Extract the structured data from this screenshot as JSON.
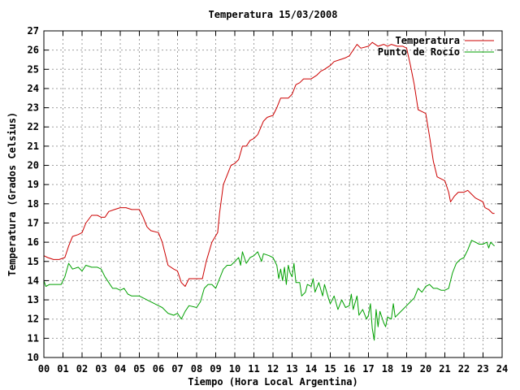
{
  "chart_data": {
    "type": "line",
    "title": "Temperatura 15/03/2008",
    "xlabel": "Tiempo (Hora Local Argentina)",
    "ylabel": "Temperatura (Grados Celsius)",
    "xlim": [
      0,
      24
    ],
    "ylim": [
      10,
      27
    ],
    "x_ticks": [
      "00",
      "01",
      "02",
      "03",
      "04",
      "05",
      "06",
      "07",
      "08",
      "09",
      "10",
      "11",
      "12",
      "13",
      "14",
      "15",
      "16",
      "17",
      "18",
      "19",
      "20",
      "21",
      "22",
      "23",
      "24"
    ],
    "y_ticks": [
      10,
      11,
      12,
      13,
      14,
      15,
      16,
      17,
      18,
      19,
      20,
      21,
      22,
      23,
      24,
      25,
      26,
      27
    ],
    "grid": true,
    "legend_position": "top-right",
    "series": [
      {
        "name": "Temperatura",
        "color": "#cc0000",
        "points": [
          [
            0.0,
            15.3
          ],
          [
            0.2,
            15.2
          ],
          [
            0.5,
            15.1
          ],
          [
            0.8,
            15.1
          ],
          [
            1.1,
            15.2
          ],
          [
            1.3,
            15.8
          ],
          [
            1.5,
            16.3
          ],
          [
            1.8,
            16.4
          ],
          [
            2.0,
            16.5
          ],
          [
            2.2,
            17.0
          ],
          [
            2.5,
            17.4
          ],
          [
            2.8,
            17.4
          ],
          [
            3.0,
            17.3
          ],
          [
            3.2,
            17.3
          ],
          [
            3.4,
            17.6
          ],
          [
            3.7,
            17.7
          ],
          [
            4.0,
            17.8
          ],
          [
            4.3,
            17.8
          ],
          [
            4.6,
            17.7
          ],
          [
            5.0,
            17.7
          ],
          [
            5.2,
            17.3
          ],
          [
            5.4,
            16.8
          ],
          [
            5.6,
            16.6
          ],
          [
            6.0,
            16.5
          ],
          [
            6.2,
            16.0
          ],
          [
            6.5,
            14.8
          ],
          [
            6.8,
            14.6
          ],
          [
            7.0,
            14.5
          ],
          [
            7.2,
            13.9
          ],
          [
            7.4,
            13.7
          ],
          [
            7.6,
            14.1
          ],
          [
            8.0,
            14.1
          ],
          [
            8.3,
            14.1
          ],
          [
            8.5,
            15.0
          ],
          [
            8.8,
            16.0
          ],
          [
            9.1,
            16.5
          ],
          [
            9.2,
            17.5
          ],
          [
            9.4,
            19.0
          ],
          [
            9.6,
            19.5
          ],
          [
            9.8,
            20.0
          ],
          [
            10.0,
            20.1
          ],
          [
            10.2,
            20.3
          ],
          [
            10.4,
            21.0
          ],
          [
            10.6,
            21.0
          ],
          [
            10.8,
            21.3
          ],
          [
            11.0,
            21.4
          ],
          [
            11.2,
            21.6
          ],
          [
            11.5,
            22.3
          ],
          [
            11.7,
            22.5
          ],
          [
            12.0,
            22.6
          ],
          [
            12.2,
            23.0
          ],
          [
            12.4,
            23.5
          ],
          [
            12.8,
            23.5
          ],
          [
            13.0,
            23.7
          ],
          [
            13.2,
            24.2
          ],
          [
            13.4,
            24.3
          ],
          [
            13.6,
            24.5
          ],
          [
            13.8,
            24.5
          ],
          [
            14.0,
            24.5
          ],
          [
            14.3,
            24.7
          ],
          [
            14.5,
            24.9
          ],
          [
            14.7,
            25.0
          ],
          [
            15.0,
            25.2
          ],
          [
            15.2,
            25.4
          ],
          [
            15.5,
            25.5
          ],
          [
            15.8,
            25.6
          ],
          [
            16.0,
            25.7
          ],
          [
            16.2,
            26.0
          ],
          [
            16.4,
            26.3
          ],
          [
            16.6,
            26.1
          ],
          [
            17.0,
            26.2
          ],
          [
            17.2,
            26.4
          ],
          [
            17.5,
            26.2
          ],
          [
            17.8,
            26.3
          ],
          [
            18.0,
            26.2
          ],
          [
            18.2,
            26.3
          ],
          [
            18.5,
            26.2
          ],
          [
            18.8,
            26.2
          ],
          [
            19.0,
            26.1
          ],
          [
            19.2,
            25.2
          ],
          [
            19.4,
            24.2
          ],
          [
            19.6,
            22.9
          ],
          [
            19.8,
            22.8
          ],
          [
            20.0,
            22.7
          ],
          [
            20.2,
            21.5
          ],
          [
            20.4,
            20.2
          ],
          [
            20.6,
            19.4
          ],
          [
            20.8,
            19.3
          ],
          [
            21.0,
            19.2
          ],
          [
            21.2,
            18.6
          ],
          [
            21.3,
            18.1
          ],
          [
            21.5,
            18.4
          ],
          [
            21.7,
            18.6
          ],
          [
            22.0,
            18.6
          ],
          [
            22.2,
            18.7
          ],
          [
            22.4,
            18.5
          ],
          [
            22.6,
            18.3
          ],
          [
            22.8,
            18.2
          ],
          [
            23.0,
            18.1
          ],
          [
            23.1,
            17.8
          ],
          [
            23.3,
            17.7
          ],
          [
            23.5,
            17.5
          ],
          [
            23.6,
            17.5
          ]
        ]
      },
      {
        "name": "Punto de Rocío",
        "color": "#00a000",
        "points": [
          [
            0.0,
            14.0
          ],
          [
            0.1,
            13.7
          ],
          [
            0.3,
            13.8
          ],
          [
            0.6,
            13.8
          ],
          [
            0.9,
            13.8
          ],
          [
            1.1,
            14.2
          ],
          [
            1.3,
            14.9
          ],
          [
            1.5,
            14.6
          ],
          [
            1.8,
            14.7
          ],
          [
            2.0,
            14.5
          ],
          [
            2.2,
            14.8
          ],
          [
            2.5,
            14.7
          ],
          [
            2.8,
            14.7
          ],
          [
            3.0,
            14.6
          ],
          [
            3.2,
            14.2
          ],
          [
            3.4,
            13.9
          ],
          [
            3.6,
            13.6
          ],
          [
            3.8,
            13.6
          ],
          [
            4.0,
            13.5
          ],
          [
            4.2,
            13.6
          ],
          [
            4.4,
            13.3
          ],
          [
            4.6,
            13.2
          ],
          [
            5.0,
            13.2
          ],
          [
            5.2,
            13.1
          ],
          [
            5.4,
            13.0
          ],
          [
            5.6,
            12.9
          ],
          [
            5.8,
            12.8
          ],
          [
            6.0,
            12.7
          ],
          [
            6.2,
            12.6
          ],
          [
            6.5,
            12.3
          ],
          [
            6.8,
            12.2
          ],
          [
            7.0,
            12.3
          ],
          [
            7.2,
            12.0
          ],
          [
            7.4,
            12.4
          ],
          [
            7.6,
            12.7
          ],
          [
            8.0,
            12.6
          ],
          [
            8.2,
            12.9
          ],
          [
            8.4,
            13.6
          ],
          [
            8.6,
            13.8
          ],
          [
            8.8,
            13.8
          ],
          [
            9.0,
            13.6
          ],
          [
            9.2,
            14.1
          ],
          [
            9.4,
            14.6
          ],
          [
            9.6,
            14.8
          ],
          [
            9.8,
            14.8
          ],
          [
            10.0,
            15.0
          ],
          [
            10.2,
            15.2
          ],
          [
            10.3,
            14.8
          ],
          [
            10.4,
            15.5
          ],
          [
            10.6,
            14.9
          ],
          [
            10.8,
            15.2
          ],
          [
            11.0,
            15.3
          ],
          [
            11.2,
            15.5
          ],
          [
            11.4,
            15.0
          ],
          [
            11.5,
            15.4
          ],
          [
            11.8,
            15.3
          ],
          [
            12.0,
            15.2
          ],
          [
            12.2,
            14.8
          ],
          [
            12.3,
            14.1
          ],
          [
            12.4,
            14.6
          ],
          [
            12.5,
            14.0
          ],
          [
            12.6,
            14.7
          ],
          [
            12.7,
            13.8
          ],
          [
            12.8,
            14.8
          ],
          [
            12.9,
            14.4
          ],
          [
            13.0,
            14.2
          ],
          [
            13.1,
            14.9
          ],
          [
            13.2,
            13.9
          ],
          [
            13.4,
            13.9
          ],
          [
            13.5,
            13.2
          ],
          [
            13.7,
            13.4
          ],
          [
            13.8,
            13.8
          ],
          [
            14.0,
            13.7
          ],
          [
            14.1,
            14.1
          ],
          [
            14.2,
            13.4
          ],
          [
            14.4,
            13.9
          ],
          [
            14.6,
            13.2
          ],
          [
            14.7,
            13.8
          ],
          [
            14.9,
            13.1
          ],
          [
            15.0,
            12.8
          ],
          [
            15.2,
            13.2
          ],
          [
            15.4,
            12.5
          ],
          [
            15.6,
            13.0
          ],
          [
            15.8,
            12.6
          ],
          [
            16.0,
            12.7
          ],
          [
            16.1,
            13.3
          ],
          [
            16.2,
            12.5
          ],
          [
            16.4,
            13.2
          ],
          [
            16.5,
            12.2
          ],
          [
            16.7,
            12.5
          ],
          [
            16.9,
            12.0
          ],
          [
            17.0,
            12.2
          ],
          [
            17.1,
            12.8
          ],
          [
            17.2,
            11.5
          ],
          [
            17.3,
            10.9
          ],
          [
            17.4,
            12.5
          ],
          [
            17.5,
            11.6
          ],
          [
            17.6,
            12.4
          ],
          [
            17.8,
            11.8
          ],
          [
            17.9,
            11.6
          ],
          [
            18.0,
            12.1
          ],
          [
            18.2,
            12.0
          ],
          [
            18.3,
            12.8
          ],
          [
            18.4,
            12.1
          ],
          [
            18.6,
            12.3
          ],
          [
            18.8,
            12.5
          ],
          [
            19.0,
            12.7
          ],
          [
            19.2,
            12.9
          ],
          [
            19.4,
            13.1
          ],
          [
            19.6,
            13.6
          ],
          [
            19.8,
            13.4
          ],
          [
            20.0,
            13.7
          ],
          [
            20.2,
            13.8
          ],
          [
            20.4,
            13.6
          ],
          [
            20.6,
            13.6
          ],
          [
            20.8,
            13.5
          ],
          [
            21.0,
            13.5
          ],
          [
            21.2,
            13.6
          ],
          [
            21.4,
            14.4
          ],
          [
            21.6,
            14.9
          ],
          [
            21.8,
            15.1
          ],
          [
            22.0,
            15.2
          ],
          [
            22.2,
            15.6
          ],
          [
            22.4,
            16.1
          ],
          [
            22.6,
            16.0
          ],
          [
            22.8,
            15.9
          ],
          [
            23.0,
            15.9
          ],
          [
            23.2,
            16.0
          ],
          [
            23.3,
            15.7
          ],
          [
            23.4,
            16.0
          ],
          [
            23.6,
            15.8
          ]
        ]
      }
    ]
  }
}
